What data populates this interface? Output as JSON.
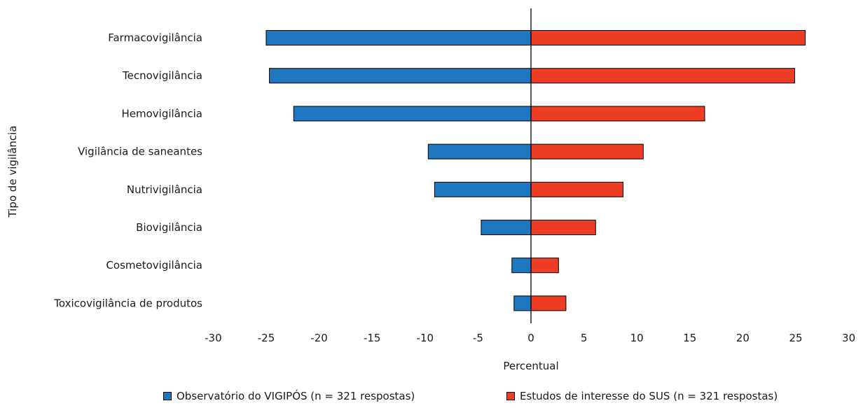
{
  "chart_data": {
    "type": "bar",
    "orientation": "horizontal-diverging",
    "categories": [
      "Farmacovigilância",
      "Tecnovigilância",
      "Hemovigilância",
      "Vigilância de saneantes",
      "Nutrivigilância",
      "Biovigilância",
      "Cosmetovigilância",
      "Toxicovigilância de produtos"
    ],
    "series": [
      {
        "name": "Observatório do VIGIPÓS (n = 321 respostas)",
        "color": "#1f77bf",
        "values": [
          -25.0,
          -24.7,
          -22.4,
          -9.7,
          -9.1,
          -4.7,
          -1.8,
          -1.6
        ]
      },
      {
        "name": "Estudos de interesse do SUS (n = 321 respostas)",
        "color": "#ee3d25",
        "values": [
          25.9,
          24.9,
          16.4,
          10.6,
          8.7,
          6.1,
          2.6,
          3.3
        ]
      }
    ],
    "xticks": [
      "-30",
      "-25",
      "-20",
      "-15",
      "-10",
      "-5",
      "0",
      "5",
      "10",
      "15",
      "20",
      "25",
      "30"
    ],
    "xlim": [
      -30,
      30
    ],
    "xlabel": "Percentual",
    "ylabel": "Tipo de vigilância",
    "legend_position": "bottom",
    "grid": false
  }
}
